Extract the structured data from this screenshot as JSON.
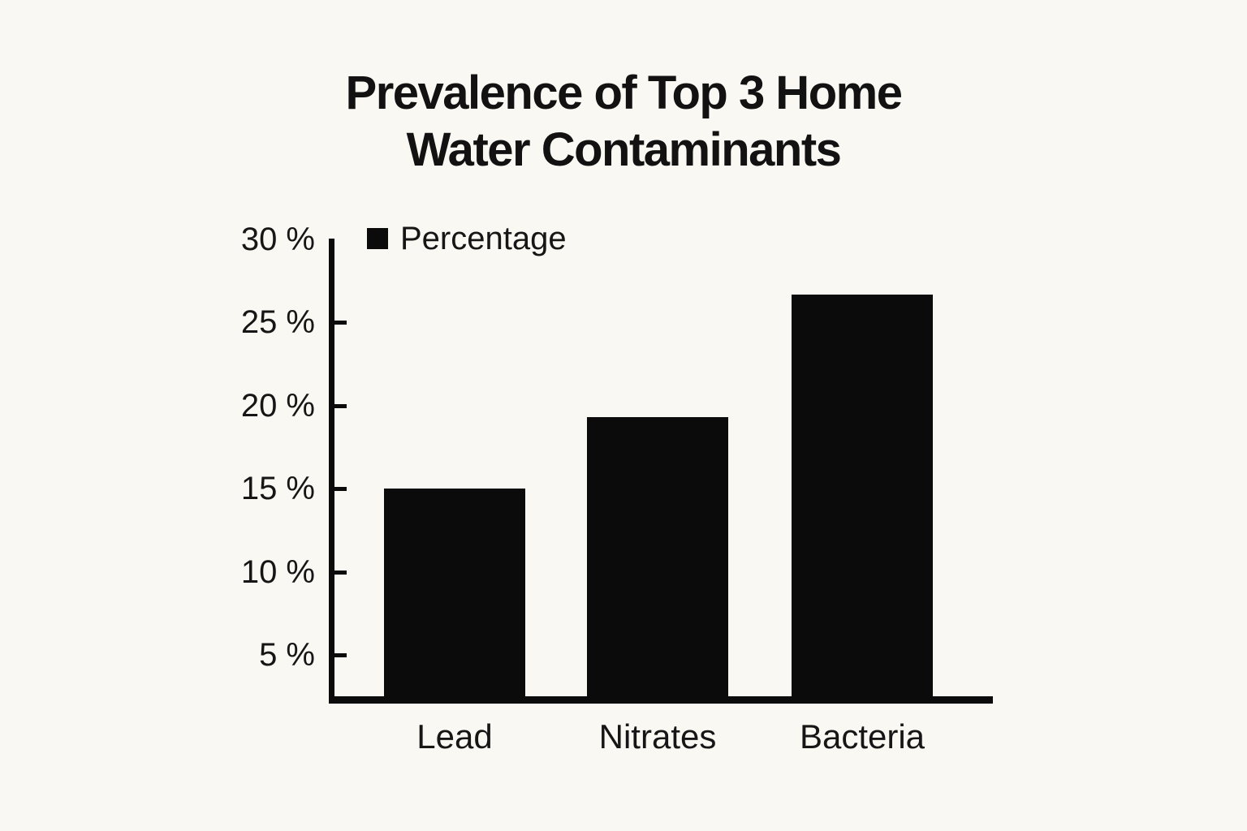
{
  "title": {
    "line1": "Prevalence of Top 3 Home",
    "line2": "Water Contaminants"
  },
  "legend": {
    "label": "Percentage",
    "swatch_color": "#0b0b0b"
  },
  "chart_data": {
    "type": "bar",
    "title": "Prevalence of Top 3 Home Water Contaminants",
    "categories": [
      "Lead",
      "Nitrates",
      "Bacteria"
    ],
    "series": [
      {
        "name": "Percentage",
        "values": [
          15,
          19.3,
          26.7
        ]
      }
    ],
    "xlabel": "",
    "ylabel": "",
    "y_ticks": [
      5,
      10,
      15,
      20,
      25,
      30
    ],
    "y_tick_suffix": " %",
    "ylim": [
      0,
      30
    ],
    "bar_color": "#0b0b0b",
    "background_color": "#faf8f2",
    "legend_position": "top-left",
    "grid": false
  }
}
